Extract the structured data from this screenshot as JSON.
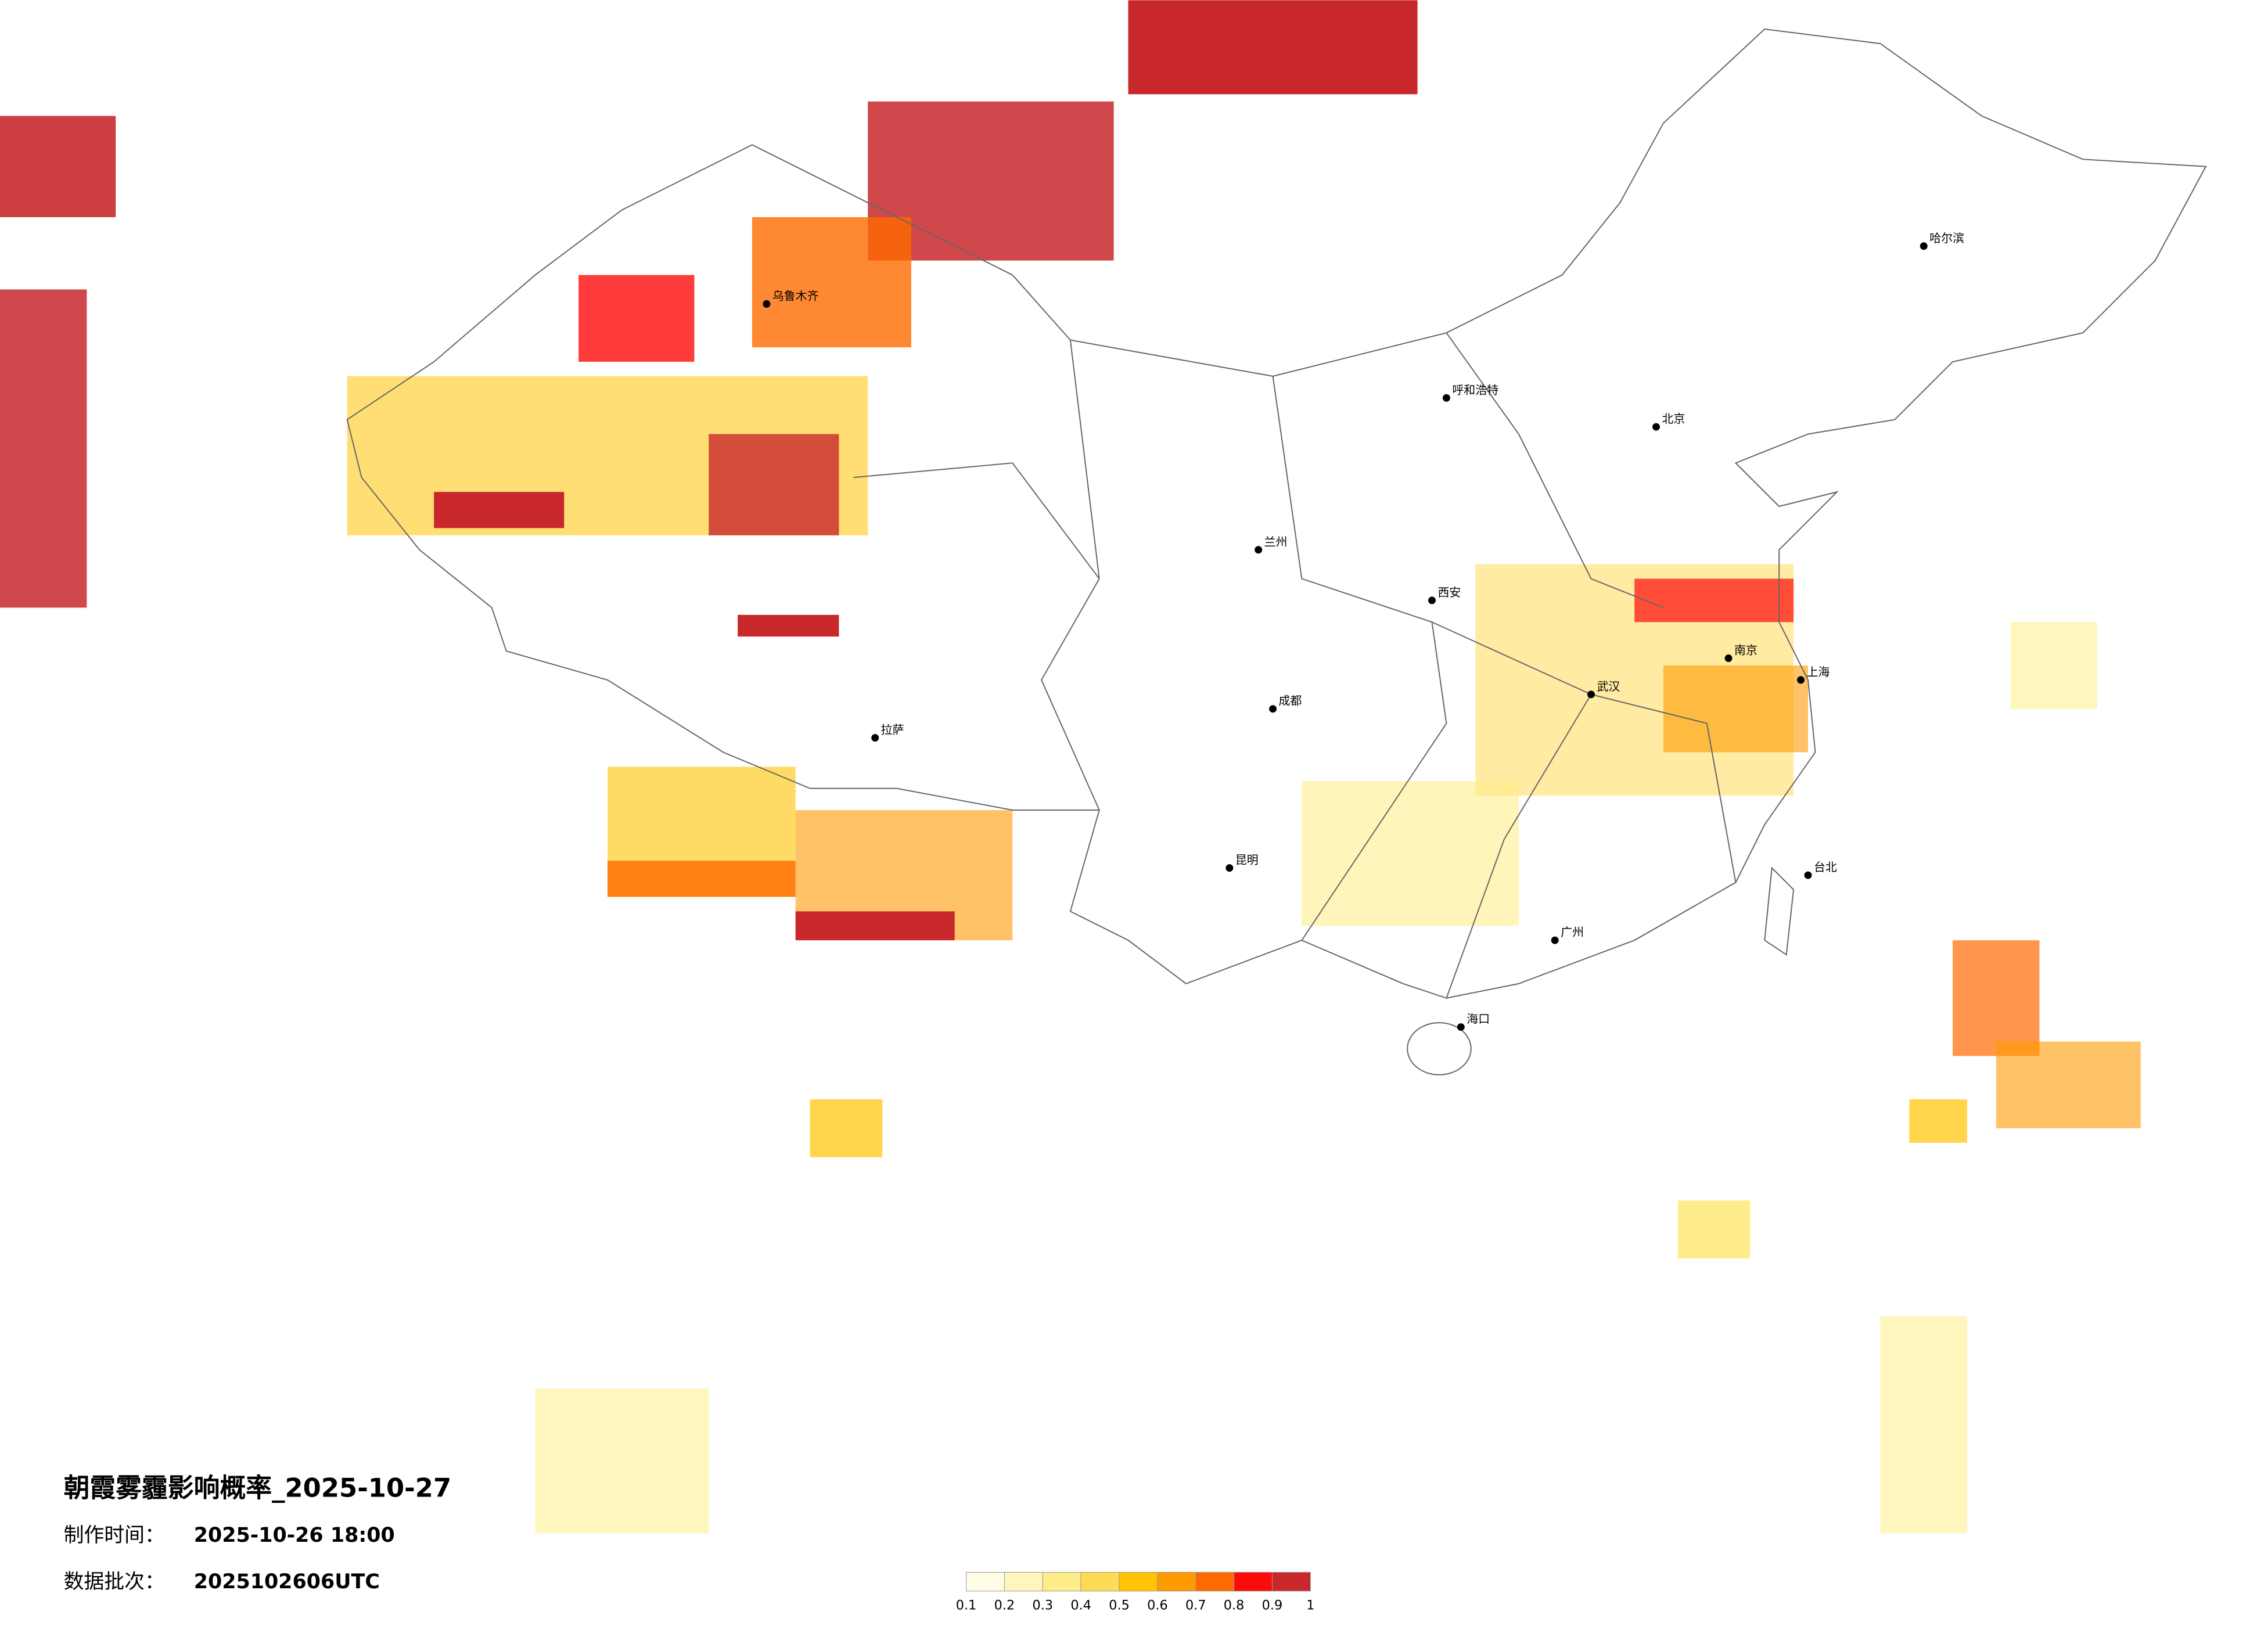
{
  "title": "朝霞雾霾影响概率_2025-10-27",
  "made_time": {
    "label": "制作时间：",
    "value": "2025-10-26 18:00"
  },
  "batch": {
    "label": "数据批次：",
    "value": "2025102606UTC"
  },
  "colorbar": {
    "ticks": [
      0.1,
      0.2,
      0.3,
      0.4,
      0.5,
      0.6,
      0.7,
      0.8,
      0.9,
      1
    ],
    "colors": [
      "#fffde6",
      "#fff6bd",
      "#ffec8a",
      "#ffda55",
      "#ffc300",
      "#ff9a00",
      "#ff6a00",
      "#ff0a0a",
      "#c8282c"
    ]
  },
  "cities": [
    "北京",
    "上海",
    "广州",
    "成都",
    "武汉",
    "西安",
    "拉萨",
    "乌鲁木齐",
    "哈尔滨",
    "昆明",
    "兰州",
    "呼和浩特",
    "海口",
    "台北",
    "南京"
  ]
}
